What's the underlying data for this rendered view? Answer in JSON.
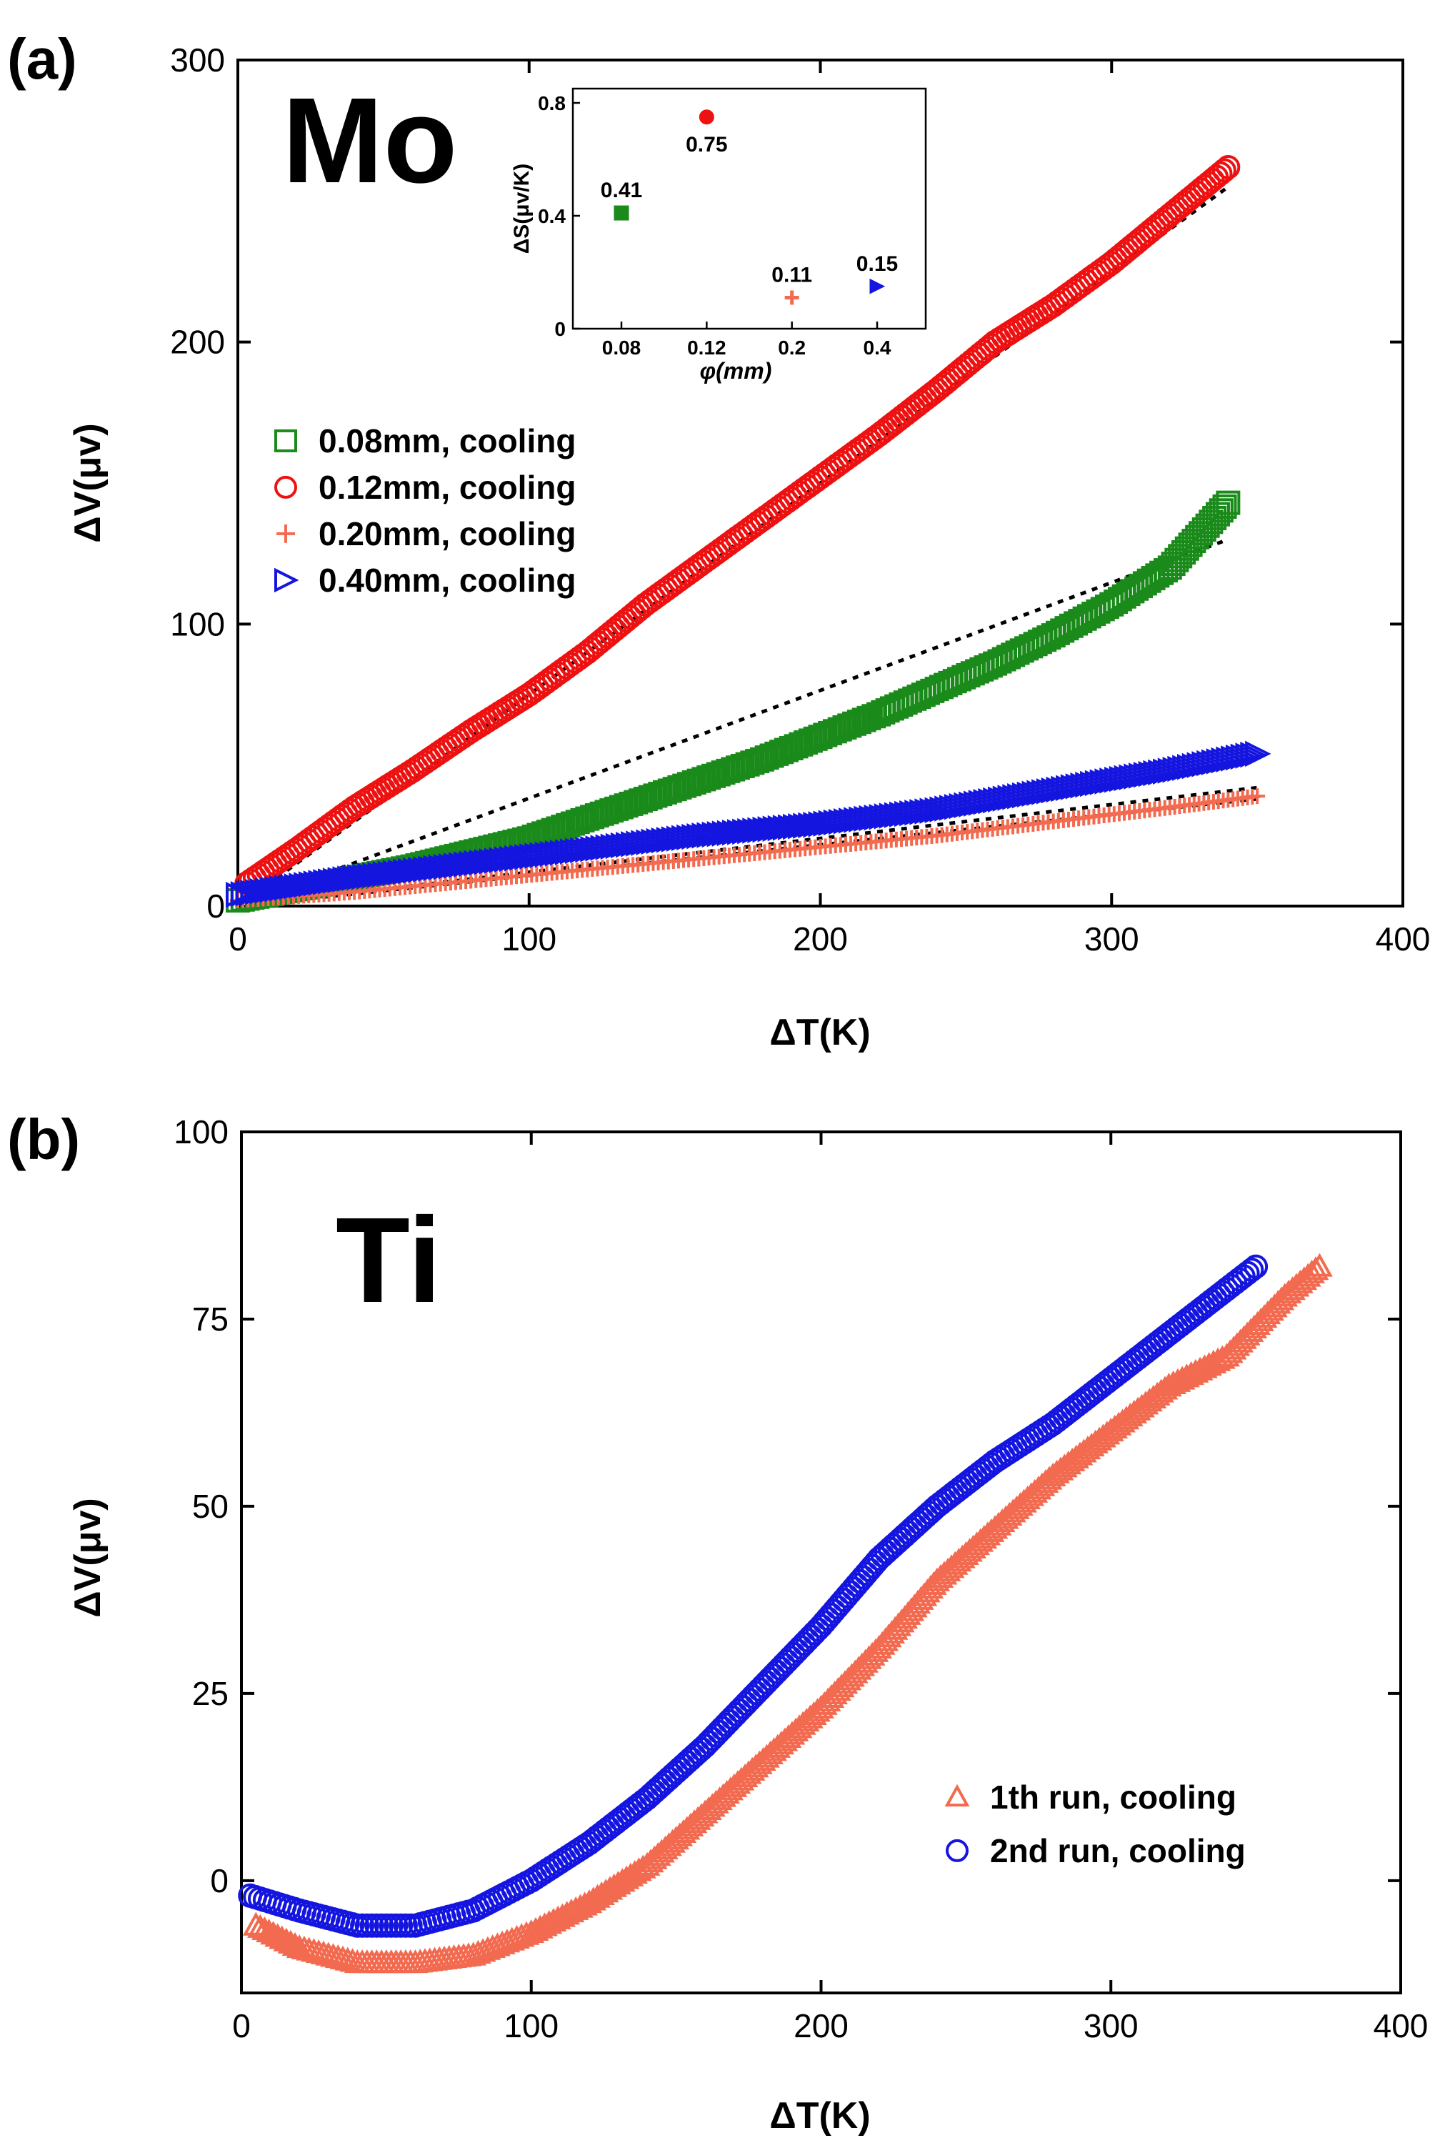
{
  "colors": {
    "green": "#1a8a1a",
    "red": "#ee1111",
    "orange": "#f26a4f",
    "blue": "#1515e0",
    "fit": "#000000"
  },
  "chart_data": [
    {
      "panel": "(a)",
      "type": "scatter",
      "material": "Mo",
      "xlabel": "ΔT(K)",
      "ylabel": "ΔV(μv)",
      "xlim": [
        0,
        400
      ],
      "ylim": [
        0,
        300
      ],
      "xticks": [
        0,
        100,
        200,
        300,
        400
      ],
      "yticks": [
        0,
        100,
        200,
        300
      ],
      "legend_position": "upper-left",
      "series": [
        {
          "name": "0.08mm, cooling",
          "marker": "square",
          "color": "#1a8a1a",
          "x": [
            0,
            20,
            40,
            60,
            80,
            100,
            120,
            140,
            160,
            180,
            200,
            220,
            240,
            260,
            280,
            300,
            320,
            340
          ],
          "y": [
            2,
            6,
            10,
            14,
            19,
            24,
            31,
            38,
            45,
            52,
            60,
            68,
            77,
            86,
            96,
            107,
            120,
            143
          ],
          "fit": {
            "x": [
              0,
              340
            ],
            "y": [
              0,
              130
            ]
          }
        },
        {
          "name": "0.12mm, cooling",
          "marker": "circle",
          "color": "#ee1111",
          "x": [
            3,
            20,
            40,
            60,
            80,
            100,
            120,
            140,
            160,
            180,
            200,
            220,
            240,
            260,
            280,
            300,
            320,
            340
          ],
          "y": [
            8,
            20,
            35,
            48,
            62,
            75,
            90,
            107,
            122,
            137,
            152,
            167,
            183,
            200,
            213,
            228,
            245,
            262
          ],
          "fit": {
            "x": [
              0,
              340
            ],
            "y": [
              0,
              255
            ]
          }
        },
        {
          "name": "0.20mm, cooling",
          "marker": "plus",
          "color": "#f26a4f",
          "x": [
            0,
            40,
            80,
            120,
            160,
            200,
            240,
            280,
            320,
            350
          ],
          "y": [
            2,
            5,
            9,
            13,
            17,
            21,
            25,
            30,
            35,
            39
          ],
          "fit": {
            "x": [
              0,
              350
            ],
            "y": [
              0,
              38
            ]
          }
        },
        {
          "name": "0.40mm, cooling",
          "marker": "triangle-right",
          "color": "#1515e0",
          "x": [
            0,
            40,
            80,
            120,
            160,
            200,
            240,
            280,
            320,
            350
          ],
          "y": [
            4,
            10,
            15,
            20,
            25,
            29,
            34,
            41,
            48,
            54
          ],
          "fit": {
            "x": [
              0,
              350
            ],
            "y": [
              0,
              42
            ]
          }
        }
      ],
      "inset": {
        "type": "scatter",
        "xlabel": "φ(mm)",
        "ylabel": "ΔS(μv/K)",
        "categories": [
          "0.08",
          "0.12",
          "0.2",
          "0.4"
        ],
        "yticks": [
          0,
          0.4,
          0.8
        ],
        "ylim": [
          0,
          0.8
        ],
        "points": [
          {
            "x": "0.08",
            "y": 0.41,
            "label": "0.41",
            "marker": "square",
            "color": "#1a8a1a"
          },
          {
            "x": "0.12",
            "y": 0.75,
            "label": "0.75",
            "marker": "circle",
            "color": "#ee1111"
          },
          {
            "x": "0.2",
            "y": 0.11,
            "label": "0.11",
            "marker": "plus",
            "color": "#f26a4f"
          },
          {
            "x": "0.4",
            "y": 0.15,
            "label": "0.15",
            "marker": "triangle-right",
            "color": "#1515e0"
          }
        ]
      }
    },
    {
      "panel": "(b)",
      "type": "scatter",
      "material": "Ti",
      "xlabel": "ΔT(K)",
      "ylabel": "ΔV(μv)",
      "xlim": [
        0,
        400
      ],
      "ylim": [
        -15,
        100
      ],
      "xticks": [
        0,
        100,
        200,
        300,
        400
      ],
      "yticks": [
        0,
        25,
        50,
        75,
        100
      ],
      "legend_position": "lower-right",
      "series": [
        {
          "name": "1th  run, cooling",
          "marker": "triangle-up",
          "color": "#f26a4f",
          "x": [
            5,
            20,
            40,
            60,
            80,
            100,
            120,
            140,
            160,
            180,
            200,
            220,
            240,
            260,
            280,
            300,
            320,
            340,
            360,
            372
          ],
          "y": [
            -6,
            -9,
            -11,
            -11,
            -10,
            -7,
            -3,
            2,
            9,
            16,
            23,
            31,
            40,
            47,
            54,
            60,
            66,
            70,
            78,
            82
          ]
        },
        {
          "name": "2nd run, cooling",
          "marker": "circle",
          "color": "#1515e0",
          "x": [
            3,
            20,
            40,
            60,
            80,
            100,
            120,
            140,
            160,
            180,
            200,
            220,
            240,
            260,
            280,
            300,
            320,
            340,
            350
          ],
          "y": [
            -2,
            -4,
            -6,
            -6,
            -4,
            0,
            5,
            11,
            18,
            26,
            34,
            43,
            50,
            56,
            61,
            67,
            73,
            79,
            82
          ]
        }
      ]
    }
  ]
}
